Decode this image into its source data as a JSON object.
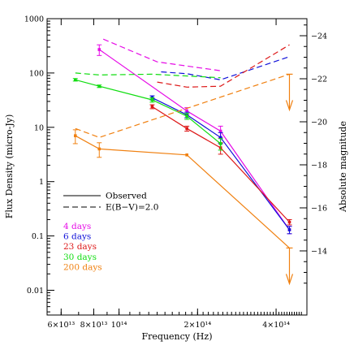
{
  "chart_data": {
    "type": "line",
    "title": "",
    "xlabel": "Frequency (Hz)",
    "ylabel": "Flux Density (micro-Jy)",
    "ylabel_right": "Absolute magnitude",
    "x_scale": "log",
    "y_scale": "log",
    "xlim": [
      53000000000000,
      525000000000000
    ],
    "ylim": [
      0.0035,
      1000
    ],
    "x_ticks": [
      {
        "value": 60000000000000,
        "label": "6×10¹³"
      },
      {
        "value": 80000000000000,
        "label": "8×10¹³"
      },
      {
        "value": 100000000000000,
        "label": "10¹⁴"
      },
      {
        "value": 200000000000000,
        "label": "2×10¹⁴"
      },
      {
        "value": 400000000000000,
        "label": "4×10¹⁴"
      }
    ],
    "y_ticks": [
      {
        "value": 0.01,
        "label": "0.01"
      },
      {
        "value": 0.1,
        "label": "0.1"
      },
      {
        "value": 1,
        "label": "1"
      },
      {
        "value": 10,
        "label": "10"
      },
      {
        "value": 100,
        "label": "100"
      },
      {
        "value": 1000,
        "label": "1000"
      }
    ],
    "right_ticks": [
      {
        "value": -24,
        "label": "−24"
      },
      {
        "value": -22,
        "label": "−22"
      },
      {
        "value": -20,
        "label": "−20"
      },
      {
        "value": -18,
        "label": "−18"
      },
      {
        "value": -16,
        "label": "−16"
      },
      {
        "value": -14,
        "label": "−14"
      }
    ],
    "legend_styles": [
      {
        "label": "Observed",
        "dash": "solid"
      },
      {
        "label": "E(B−V)=2.0",
        "dash": "dashed"
      }
    ],
    "series": [
      {
        "name": "4 days",
        "color": "#e60be6",
        "observed": [
          {
            "x": 84000000000000,
            "y": 270,
            "err": 60
          },
          {
            "x": 182000000000000,
            "y": 20,
            "err": 3
          },
          {
            "x": 245000000000000,
            "y": 8.5,
            "err": 2
          },
          {
            "x": 450000000000000,
            "y": 0.13,
            "err": 0.02
          }
        ],
        "dereddened": [
          {
            "x": 87000000000000,
            "y": 420
          },
          {
            "x": 140000000000000,
            "y": 160
          },
          {
            "x": 245000000000000,
            "y": 110
          }
        ]
      },
      {
        "name": "6 days",
        "color": "#1010d8",
        "observed": [
          {
            "x": 134000000000000,
            "y": 35,
            "err": 3
          },
          {
            "x": 182000000000000,
            "y": 17,
            "err": 2
          },
          {
            "x": 245000000000000,
            "y": 6.5,
            "err": 1.5
          },
          {
            "x": 450000000000000,
            "y": 0.13,
            "err": 0.02
          }
        ],
        "dereddened": [
          {
            "x": 145000000000000,
            "y": 105
          },
          {
            "x": 182000000000000,
            "y": 97
          },
          {
            "x": 245000000000000,
            "y": 75
          },
          {
            "x": 450000000000000,
            "y": 200
          }
        ]
      },
      {
        "name": "23 days",
        "color": "#dd1818",
        "observed": [
          {
            "x": 134000000000000,
            "y": 24,
            "err": 2
          },
          {
            "x": 182000000000000,
            "y": 9.5,
            "err": 1
          },
          {
            "x": 245000000000000,
            "y": 4.2,
            "err": 1
          },
          {
            "x": 450000000000000,
            "y": 0.18,
            "err": 0.02
          }
        ],
        "dereddened": [
          {
            "x": 140000000000000,
            "y": 68
          },
          {
            "x": 182000000000000,
            "y": 55
          },
          {
            "x": 245000000000000,
            "y": 57
          },
          {
            "x": 450000000000000,
            "y": 330
          }
        ]
      },
      {
        "name": "30 days",
        "color": "#10dd10",
        "observed": [
          {
            "x": 68000000000000,
            "y": 75,
            "err": 4
          },
          {
            "x": 84000000000000,
            "y": 57,
            "err": 3
          },
          {
            "x": 134000000000000,
            "y": 32,
            "err": 3
          },
          {
            "x": 182000000000000,
            "y": 16,
            "err": 2
          },
          {
            "x": 245000000000000,
            "y": 5,
            "err": 1.2
          }
        ],
        "dereddened": [
          {
            "x": 68000000000000,
            "y": 100
          },
          {
            "x": 84000000000000,
            "y": 92
          },
          {
            "x": 134000000000000,
            "y": 95
          },
          {
            "x": 245000000000000,
            "y": 82
          }
        ]
      },
      {
        "name": "200 days",
        "color": "#f08010",
        "observed": [
          {
            "x": 68000000000000,
            "y": 7,
            "err": 2
          },
          {
            "x": 84000000000000,
            "y": 4,
            "err": 1.2
          },
          {
            "x": 182000000000000,
            "y": 3.1,
            "err": 0
          },
          {
            "x": 450000000000000,
            "y": 0.06,
            "err": 0,
            "upper_limit": true
          }
        ],
        "dereddened": [
          {
            "x": 68000000000000,
            "y": 9.5
          },
          {
            "x": 84000000000000,
            "y": 6.5
          },
          {
            "x": 450000000000000,
            "y": 95,
            "upper_limit": true
          }
        ]
      }
    ]
  }
}
